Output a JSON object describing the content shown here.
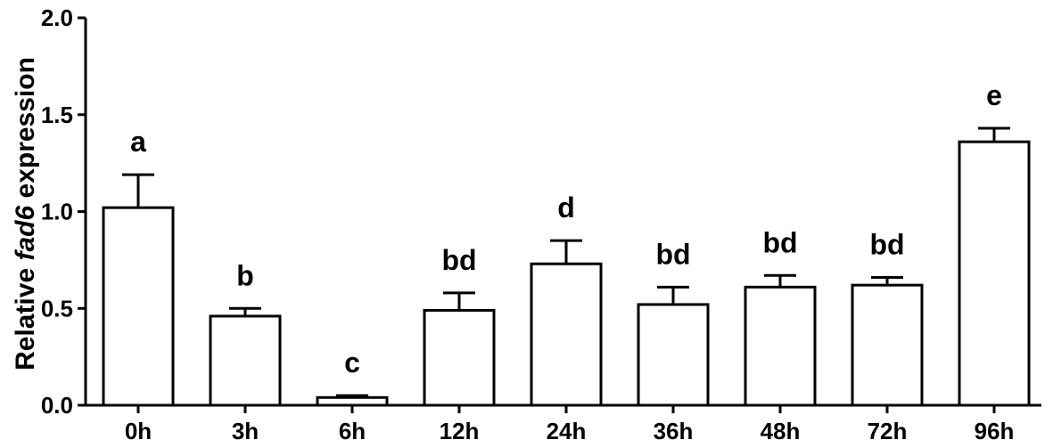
{
  "chart_data": {
    "type": "bar",
    "title": "",
    "xlabel": "",
    "ylabel": {
      "prefix": "Relative ",
      "gene": "fad6",
      "suffix": " expression"
    },
    "ylim": [
      0,
      2.0
    ],
    "yticks": [
      "0.0",
      "0.5",
      "1.0",
      "1.5",
      "2.0"
    ],
    "categories": [
      "0h",
      "3h",
      "6h",
      "12h",
      "24h",
      "36h",
      "48h",
      "72h",
      "96h"
    ],
    "values": [
      1.02,
      0.46,
      0.04,
      0.49,
      0.73,
      0.52,
      0.61,
      0.62,
      1.36
    ],
    "errors": [
      0.17,
      0.04,
      0.01,
      0.09,
      0.12,
      0.09,
      0.06,
      0.04,
      0.07
    ],
    "significance": [
      "a",
      "b",
      "c",
      "bd",
      "d",
      "bd",
      "bd",
      "bd",
      "e"
    ],
    "bar_fill": "#ffffff",
    "bar_stroke": "#000000",
    "grid": false,
    "legend": "none"
  }
}
